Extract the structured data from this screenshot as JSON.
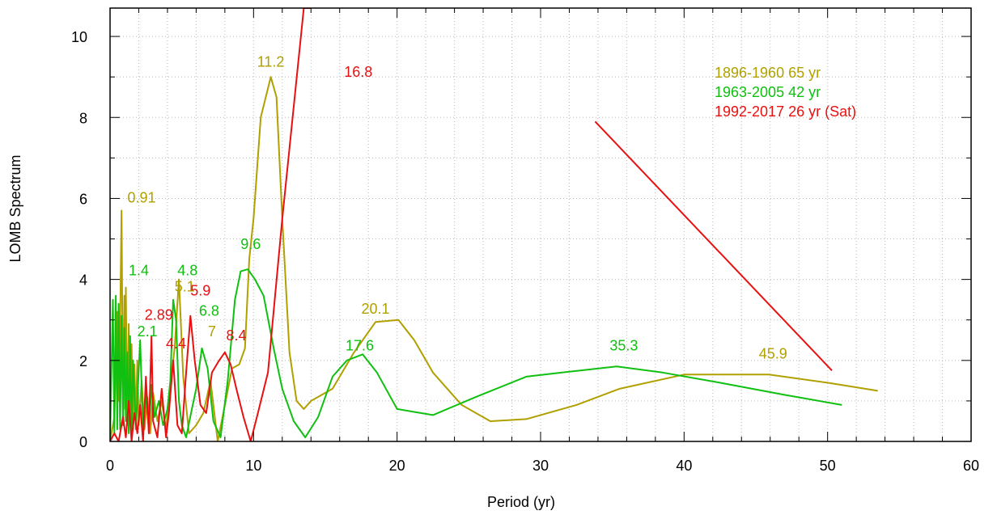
{
  "chart_data": {
    "type": "line",
    "xlabel": "Period (yr)",
    "ylabel": "LOMB Spectrum",
    "xlim": [
      0,
      60
    ],
    "ylim": [
      0,
      10.7
    ],
    "xticks": [
      0,
      10,
      20,
      30,
      40,
      50,
      60
    ],
    "yticks": [
      0,
      2,
      4,
      6,
      8,
      10
    ],
    "grid": true,
    "legend_position": "top-right",
    "series": [
      {
        "name": "1896-1960 65 yr",
        "color": "#b0a000",
        "x": [
          0.0,
          0.3,
          0.5,
          0.6,
          0.7,
          0.8,
          0.91,
          1.0,
          1.05,
          1.1,
          1.2,
          1.3,
          1.4,
          1.5,
          1.6,
          1.7,
          1.8,
          1.9,
          2.0,
          2.2,
          2.4,
          2.6,
          2.8,
          3.0,
          3.3,
          3.6,
          3.9,
          4.2,
          4.5,
          4.8,
          5.1,
          5.5,
          6.0,
          6.5,
          7.0,
          7.5,
          8.0,
          8.5,
          9.0,
          9.4,
          9.7,
          10.0,
          10.5,
          11.2,
          11.6,
          12.0,
          12.5,
          13.0,
          13.5,
          14.0,
          15.5,
          17.0,
          18.5,
          20.1,
          21.2,
          22.5,
          24.5,
          26.5,
          29.0,
          32.5,
          35.5,
          40.0,
          45.9,
          50.0,
          53.5
        ],
        "y": [
          0.0,
          0.6,
          3.2,
          1.0,
          2.8,
          5.7,
          0.5,
          3.6,
          0.8,
          3.8,
          0.4,
          2.9,
          0.6,
          2.4,
          0.3,
          1.9,
          0.5,
          2.0,
          0.4,
          1.5,
          0.3,
          1.1,
          0.2,
          1.2,
          0.5,
          1.0,
          0.3,
          1.4,
          2.3,
          4.0,
          1.6,
          0.2,
          0.4,
          0.7,
          1.5,
          0.0,
          0.9,
          1.8,
          1.9,
          2.3,
          4.5,
          5.5,
          8.0,
          9.0,
          8.5,
          5.5,
          2.2,
          1.0,
          0.8,
          1.0,
          1.3,
          2.2,
          2.95,
          3.0,
          2.5,
          1.7,
          0.9,
          0.5,
          0.55,
          0.9,
          1.3,
          1.65,
          1.65,
          1.45,
          1.25
        ]
      },
      {
        "name": "1963-2005 42 yr",
        "color": "#10c010",
        "x": [
          0.0,
          0.2,
          0.3,
          0.4,
          0.5,
          0.6,
          0.7,
          0.8,
          0.9,
          1.0,
          1.1,
          1.2,
          1.3,
          1.4,
          1.5,
          1.6,
          1.8,
          2.0,
          2.1,
          2.3,
          2.5,
          2.7,
          2.9,
          3.1,
          3.4,
          3.7,
          4.0,
          4.2,
          4.4,
          4.6,
          4.8,
          5.0,
          5.3,
          5.7,
          6.0,
          6.4,
          6.8,
          7.2,
          7.7,
          8.2,
          8.7,
          9.1,
          9.6,
          10.1,
          10.7,
          11.4,
          12.0,
          12.8,
          13.6,
          14.5,
          15.5,
          16.5,
          17.6,
          18.6,
          20.0,
          22.5,
          25.5,
          29.0,
          31.5,
          35.3,
          38.5,
          42.5,
          47.0,
          51.0
        ],
        "y": [
          0.0,
          3.5,
          0.2,
          3.6,
          0.3,
          3.4,
          0.3,
          3.1,
          0.4,
          2.8,
          0.5,
          2.2,
          0.2,
          2.6,
          0.1,
          2.0,
          0.3,
          1.8,
          2.5,
          0.2,
          1.2,
          0.3,
          1.4,
          0.6,
          1.0,
          0.4,
          0.8,
          1.5,
          3.5,
          3.0,
          1.0,
          0.4,
          0.1,
          0.8,
          1.3,
          2.3,
          1.8,
          0.5,
          0.1,
          1.5,
          3.5,
          4.2,
          4.25,
          4.0,
          3.6,
          2.3,
          1.3,
          0.5,
          0.1,
          0.6,
          1.6,
          2.0,
          2.15,
          1.7,
          0.8,
          0.65,
          1.1,
          1.6,
          1.7,
          1.85,
          1.7,
          1.45,
          1.15,
          0.9
        ]
      },
      {
        "name": "1992-2017 26 yr (Sat)",
        "color": "#e81010",
        "x": [
          0.0,
          0.3,
          0.6,
          0.9,
          1.1,
          1.3,
          1.5,
          1.7,
          1.9,
          2.1,
          2.3,
          2.5,
          2.7,
          2.89,
          3.0,
          3.3,
          3.6,
          3.9,
          4.1,
          4.4,
          4.7,
          5.0,
          5.3,
          5.6,
          5.9,
          6.3,
          6.7,
          7.1,
          7.6,
          8.0,
          8.4,
          8.8,
          9.3,
          9.8,
          10.3,
          11.0,
          12.0,
          13.5,
          14.0
        ],
        "y": [
          0.0,
          0.2,
          0.0,
          0.6,
          0.1,
          1.0,
          0.0,
          0.7,
          0.2,
          0.9,
          0.0,
          1.6,
          0.2,
          2.6,
          0.5,
          0.1,
          1.3,
          0.1,
          0.7,
          2.0,
          0.4,
          0.2,
          1.7,
          3.1,
          2.0,
          0.9,
          0.7,
          1.7,
          2.0,
          2.2,
          1.9,
          1.3,
          0.6,
          0.0,
          0.7,
          1.7,
          5.5,
          10.7,
          10.7
        ]
      },
      {
        "name": "",
        "color": "#e81010",
        "x": [
          33.8,
          50.3
        ],
        "y": [
          7.9,
          1.75
        ]
      }
    ],
    "annotations": [
      {
        "text": "11.2",
        "x": 11.2,
        "y": 9.25,
        "color": "#b0a000"
      },
      {
        "text": "16.8",
        "x": 17.3,
        "y": 9.0,
        "color": "#e81010"
      },
      {
        "text": "0.91",
        "x": 2.2,
        "y": 5.9,
        "color": "#b0a000"
      },
      {
        "text": "9.6",
        "x": 9.8,
        "y": 4.75,
        "color": "#10c010"
      },
      {
        "text": "1.4",
        "x": 2.0,
        "y": 4.1,
        "color": "#10c010"
      },
      {
        "text": "4.8",
        "x": 5.4,
        "y": 4.1,
        "color": "#10c010"
      },
      {
        "text": "5.1",
        "x": 5.2,
        "y": 3.7,
        "color": "#b0a000"
      },
      {
        "text": "5.9",
        "x": 6.3,
        "y": 3.6,
        "color": "#e81010"
      },
      {
        "text": "2.89",
        "x": 3.4,
        "y": 3.0,
        "color": "#e81010"
      },
      {
        "text": "6.8",
        "x": 6.9,
        "y": 3.1,
        "color": "#10c010"
      },
      {
        "text": "2.1",
        "x": 2.6,
        "y": 2.6,
        "color": "#10c010"
      },
      {
        "text": "7",
        "x": 7.1,
        "y": 2.6,
        "color": "#b0a000"
      },
      {
        "text": "8.4",
        "x": 8.8,
        "y": 2.5,
        "color": "#e81010"
      },
      {
        "text": "4.4",
        "x": 4.6,
        "y": 2.3,
        "color": "#e81010"
      },
      {
        "text": "20.1",
        "x": 18.5,
        "y": 3.15,
        "color": "#b0a000"
      },
      {
        "text": "17.6",
        "x": 17.4,
        "y": 2.25,
        "color": "#10c010"
      },
      {
        "text": "35.3",
        "x": 35.8,
        "y": 2.25,
        "color": "#10c010"
      },
      {
        "text": "45.9",
        "x": 46.2,
        "y": 2.05,
        "color": "#b0a000"
      }
    ]
  }
}
